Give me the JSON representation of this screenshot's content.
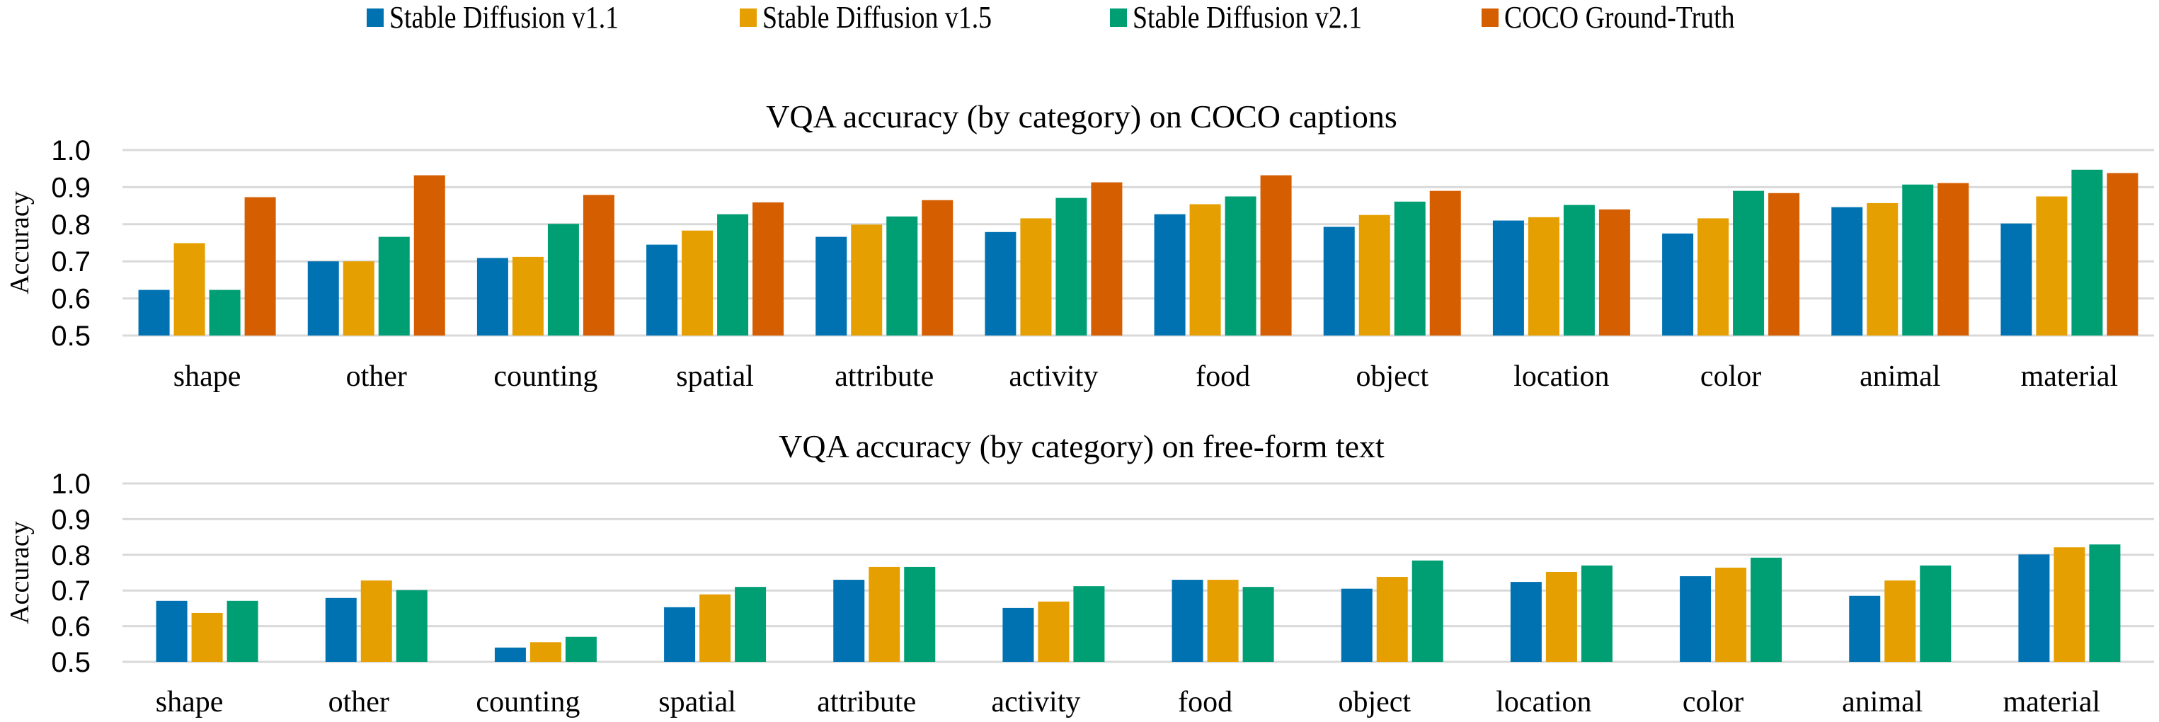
{
  "legend": [
    {
      "label": "Stable Diffusion v1.1",
      "color": "#0072B2"
    },
    {
      "label": "Stable Diffusion v1.5",
      "color": "#E69F00"
    },
    {
      "label": "Stable Diffusion v2.1",
      "color": "#009E73"
    },
    {
      "label": "COCO Ground-Truth",
      "color": "#D55E00"
    }
  ],
  "chart_data": [
    {
      "type": "bar",
      "title": "VQA accuracy (by category) on COCO captions",
      "xlabel": "",
      "ylabel": "Accuracy",
      "ylim": [
        0.5,
        1.0
      ],
      "yticks": [
        "0.5",
        "0.6",
        "0.7",
        "0.8",
        "0.9",
        "1.0"
      ],
      "grid": true,
      "legend_position": "top",
      "categories": [
        "shape",
        "other",
        "counting",
        "spatial",
        "attribute",
        "activity",
        "food",
        "object",
        "location",
        "color",
        "animal",
        "material"
      ],
      "series": [
        {
          "name": "Stable Diffusion v1.1",
          "color": "#0072B2",
          "values": [
            0.623,
            0.7,
            0.709,
            0.745,
            0.766,
            0.779,
            0.827,
            0.793,
            0.81,
            0.775,
            0.846,
            0.802
          ]
        },
        {
          "name": "Stable Diffusion v1.5",
          "color": "#E69F00",
          "values": [
            0.749,
            0.7,
            0.712,
            0.783,
            0.799,
            0.816,
            0.854,
            0.825,
            0.819,
            0.816,
            0.857,
            0.875
          ]
        },
        {
          "name": "Stable Diffusion v2.1",
          "color": "#009E73",
          "values": [
            0.623,
            0.766,
            0.801,
            0.827,
            0.821,
            0.871,
            0.875,
            0.861,
            0.852,
            0.89,
            0.907,
            0.947
          ]
        },
        {
          "name": "COCO Ground-Truth",
          "color": "#D55E00",
          "values": [
            0.873,
            0.932,
            0.879,
            0.859,
            0.865,
            0.913,
            0.932,
            0.89,
            0.84,
            0.884,
            0.911,
            0.938
          ]
        }
      ]
    },
    {
      "type": "bar",
      "title": "VQA accuracy (by category) on free-form text",
      "xlabel": "",
      "ylabel": "Accuracy",
      "ylim": [
        0.5,
        1.0
      ],
      "yticks": [
        "0.5",
        "0.6",
        "0.7",
        "0.8",
        "0.9",
        "1.0"
      ],
      "grid": true,
      "categories": [
        "shape",
        "other",
        "counting",
        "spatial",
        "attribute",
        "activity",
        "food",
        "object",
        "location",
        "color",
        "animal",
        "material"
      ],
      "series": [
        {
          "name": "Stable Diffusion v1.1",
          "color": "#0072B2",
          "values": [
            0.671,
            0.679,
            0.54,
            0.653,
            0.73,
            0.651,
            0.73,
            0.705,
            0.724,
            0.74,
            0.685,
            0.801
          ]
        },
        {
          "name": "Stable Diffusion v1.5",
          "color": "#E69F00",
          "values": [
            0.637,
            0.728,
            0.555,
            0.689,
            0.766,
            0.669,
            0.73,
            0.738,
            0.752,
            0.764,
            0.728,
            0.821
          ]
        },
        {
          "name": "Stable Diffusion v2.1",
          "color": "#009E73",
          "values": [
            0.671,
            0.701,
            0.57,
            0.71,
            0.766,
            0.712,
            0.71,
            0.784,
            0.77,
            0.792,
            0.77,
            0.829
          ]
        }
      ]
    }
  ]
}
